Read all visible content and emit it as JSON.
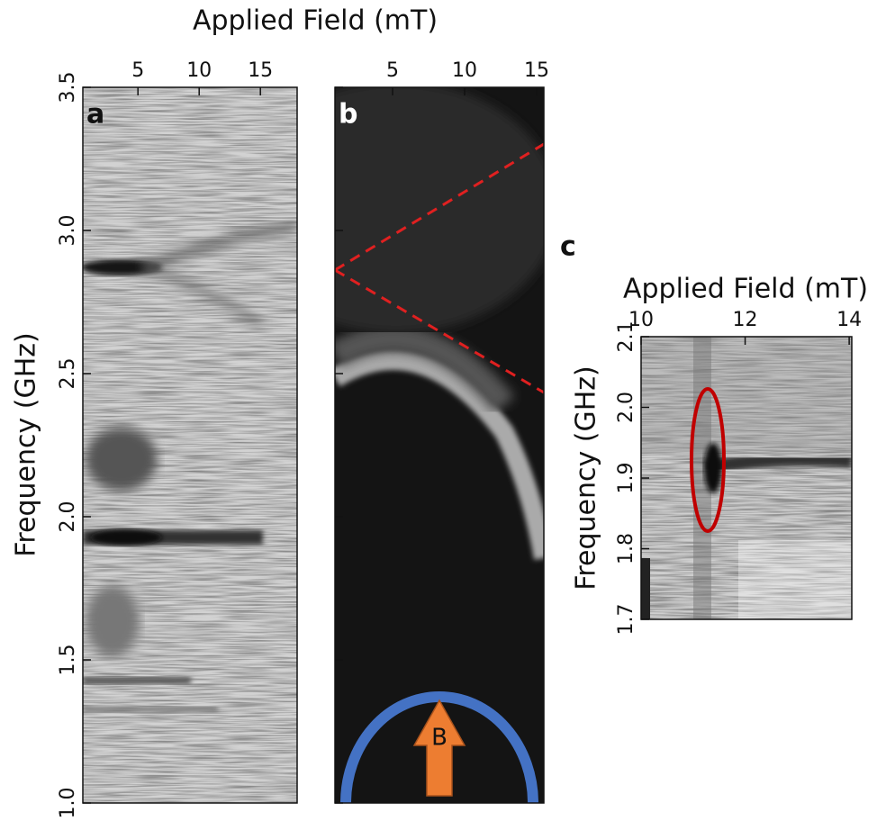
{
  "chart_data": [
    {
      "type": "heatmap",
      "panel_label": "a",
      "x_label": "Applied Field (mT)",
      "y_label": "Frequency (GHz)",
      "xlim": [
        0.5,
        18
      ],
      "xticks": [
        5,
        10,
        15
      ],
      "ylim": [
        1.0,
        3.5
      ],
      "yticks": [
        {
          "value": 1.0,
          "label": "1.0"
        },
        1.5,
        {
          "value": 2.0,
          "label": "2.0"
        },
        2.5,
        {
          "value": 3.0,
          "label": "3.0"
        },
        3.5
      ]
    },
    {
      "type": "heatmap",
      "panel_label": "b",
      "annotation": "B",
      "xlim": [
        1,
        15.5
      ],
      "xticks": [
        5,
        10,
        15
      ],
      "ylim": [
        1.0,
        3.5
      ],
      "yticks": [
        1.0,
        1.5,
        2.0,
        2.5,
        3.0,
        3.5
      ]
    },
    {
      "type": "heatmap",
      "panel_label": "c",
      "x_label": "Applied Field (mT)",
      "y_label": "Frequency (GHz)",
      "xlim": [
        10,
        14.05
      ],
      "xticks": [
        10,
        12,
        14
      ],
      "ylim": [
        1.7,
        2.1
      ],
      "yticks": [
        1.7,
        1.8,
        1.9,
        {
          "value": 2.0,
          "label": "2.0"
        },
        2.1
      ]
    }
  ]
}
